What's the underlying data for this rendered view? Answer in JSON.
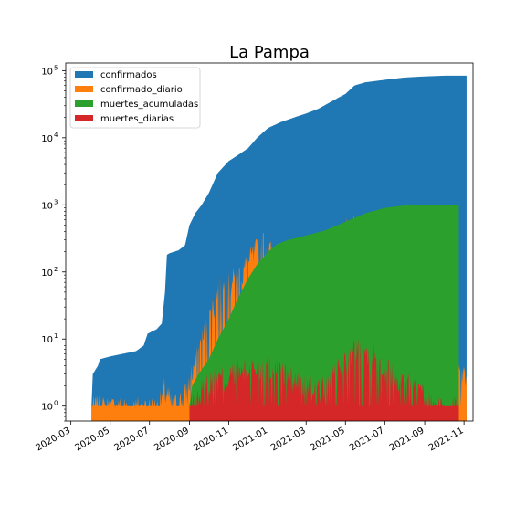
{
  "chart_data": {
    "type": "area",
    "title": "La Pampa",
    "xlabel": "",
    "ylabel": "",
    "yscale": "log",
    "ylim": [
      0.6,
      130000
    ],
    "xlim": [
      "2020-02-22",
      "2021-11-15"
    ],
    "x_ticks": [
      "2020-03",
      "2020-05",
      "2020-07",
      "2020-09",
      "2020-11",
      "2021-01",
      "2021-03",
      "2021-05",
      "2021-07",
      "2021-09",
      "2021-11"
    ],
    "y_ticks": [
      {
        "value": 1,
        "base": "10",
        "exp": "0"
      },
      {
        "value": 10,
        "base": "10",
        "exp": "1"
      },
      {
        "value": 100,
        "base": "10",
        "exp": "2"
      },
      {
        "value": 1000,
        "base": "10",
        "exp": "3"
      },
      {
        "value": 10000,
        "base": "10",
        "exp": "4"
      },
      {
        "value": 100000,
        "base": "10",
        "exp": "5"
      }
    ],
    "legend": "upper-left",
    "series": [
      {
        "name": "confirmados",
        "color": "#1f77b4",
        "kind": "curve",
        "points": [
          [
            "2020-04-02",
            1
          ],
          [
            "2020-04-04",
            3
          ],
          [
            "2020-04-12",
            4
          ],
          [
            "2020-04-15",
            5
          ],
          [
            "2020-05-01",
            5.5
          ],
          [
            "2020-05-20",
            6
          ],
          [
            "2020-06-10",
            6.6
          ],
          [
            "2020-06-22",
            8
          ],
          [
            "2020-06-28",
            12
          ],
          [
            "2020-07-12",
            14
          ],
          [
            "2020-07-20",
            17
          ],
          [
            "2020-07-25",
            50
          ],
          [
            "2020-07-28",
            180
          ],
          [
            "2020-08-01",
            190
          ],
          [
            "2020-08-15",
            210
          ],
          [
            "2020-08-25",
            250
          ],
          [
            "2020-09-01",
            500
          ],
          [
            "2020-09-10",
            750
          ],
          [
            "2020-09-20",
            1000
          ],
          [
            "2020-10-01",
            1500
          ],
          [
            "2020-10-15",
            3000
          ],
          [
            "2020-11-01",
            4500
          ],
          [
            "2020-11-15",
            5500
          ],
          [
            "2020-12-01",
            7000
          ],
          [
            "2020-12-15",
            10000
          ],
          [
            "2021-01-01",
            14000
          ],
          [
            "2021-01-20",
            17000
          ],
          [
            "2021-02-10",
            20000
          ],
          [
            "2021-03-01",
            23000
          ],
          [
            "2021-03-20",
            27000
          ],
          [
            "2021-04-10",
            35000
          ],
          [
            "2021-05-01",
            45000
          ],
          [
            "2021-05-15",
            60000
          ],
          [
            "2021-06-01",
            67000
          ],
          [
            "2021-07-01",
            73000
          ],
          [
            "2021-08-01",
            79000
          ],
          [
            "2021-09-01",
            82000
          ],
          [
            "2021-10-01",
            84000
          ],
          [
            "2021-11-05",
            84000
          ]
        ]
      },
      {
        "name": "confirmado_diario",
        "color": "#ff7f0e",
        "kind": "spiky",
        "seed": 7,
        "start": "2020-04-02",
        "end": "2021-11-05",
        "envelope": [
          [
            "2020-04-02",
            1
          ],
          [
            "2020-07-15",
            1
          ],
          [
            "2020-07-25",
            2
          ],
          [
            "2020-08-05",
            1
          ],
          [
            "2020-08-25",
            1.5
          ],
          [
            "2020-09-10",
            5
          ],
          [
            "2020-10-01",
            20
          ],
          [
            "2020-10-15",
            60
          ],
          [
            "2020-11-01",
            70
          ],
          [
            "2020-11-20",
            100
          ],
          [
            "2020-12-10",
            200
          ],
          [
            "2020-12-25",
            300
          ],
          [
            "2021-01-10",
            180
          ],
          [
            "2021-02-01",
            120
          ],
          [
            "2021-03-01",
            150
          ],
          [
            "2021-04-01",
            250
          ],
          [
            "2021-05-01",
            450
          ],
          [
            "2021-05-15",
            550
          ],
          [
            "2021-06-01",
            400
          ],
          [
            "2021-07-01",
            300
          ],
          [
            "2021-08-01",
            150
          ],
          [
            "2021-08-20",
            60
          ],
          [
            "2021-09-01",
            20
          ],
          [
            "2021-10-01",
            5
          ],
          [
            "2021-11-05",
            3
          ]
        ]
      },
      {
        "name": "muertes_acumuladas",
        "color": "#2ca02c",
        "kind": "curve",
        "points": [
          [
            "2020-09-01",
            1
          ],
          [
            "2020-09-05",
            2
          ],
          [
            "2020-09-15",
            3
          ],
          [
            "2020-10-01",
            5
          ],
          [
            "2020-10-15",
            10
          ],
          [
            "2020-11-01",
            20
          ],
          [
            "2020-11-15",
            40
          ],
          [
            "2020-12-01",
            80
          ],
          [
            "2020-12-15",
            130
          ],
          [
            "2021-01-01",
            200
          ],
          [
            "2021-01-15",
            260
          ],
          [
            "2021-02-01",
            300
          ],
          [
            "2021-03-01",
            350
          ],
          [
            "2021-04-01",
            420
          ],
          [
            "2021-05-01",
            560
          ],
          [
            "2021-06-01",
            750
          ],
          [
            "2021-07-01",
            900
          ],
          [
            "2021-08-01",
            980
          ],
          [
            "2021-09-01",
            1000
          ],
          [
            "2021-10-24",
            1010
          ]
        ]
      },
      {
        "name": "muertes_diarias",
        "color": "#d62728",
        "kind": "spiky",
        "seed": 13,
        "start": "2020-09-01",
        "end": "2021-10-24",
        "envelope": [
          [
            "2020-09-01",
            1
          ],
          [
            "2020-10-01",
            2.5
          ],
          [
            "2020-11-01",
            3
          ],
          [
            "2020-12-01",
            4
          ],
          [
            "2021-01-01",
            4.5
          ],
          [
            "2021-02-01",
            3
          ],
          [
            "2021-03-01",
            2
          ],
          [
            "2021-04-01",
            2
          ],
          [
            "2021-05-01",
            5
          ],
          [
            "2021-05-20",
            8
          ],
          [
            "2021-06-15",
            6
          ],
          [
            "2021-07-15",
            3
          ],
          [
            "2021-08-15",
            2
          ],
          [
            "2021-09-15",
            1
          ],
          [
            "2021-10-24",
            1
          ]
        ]
      }
    ]
  }
}
